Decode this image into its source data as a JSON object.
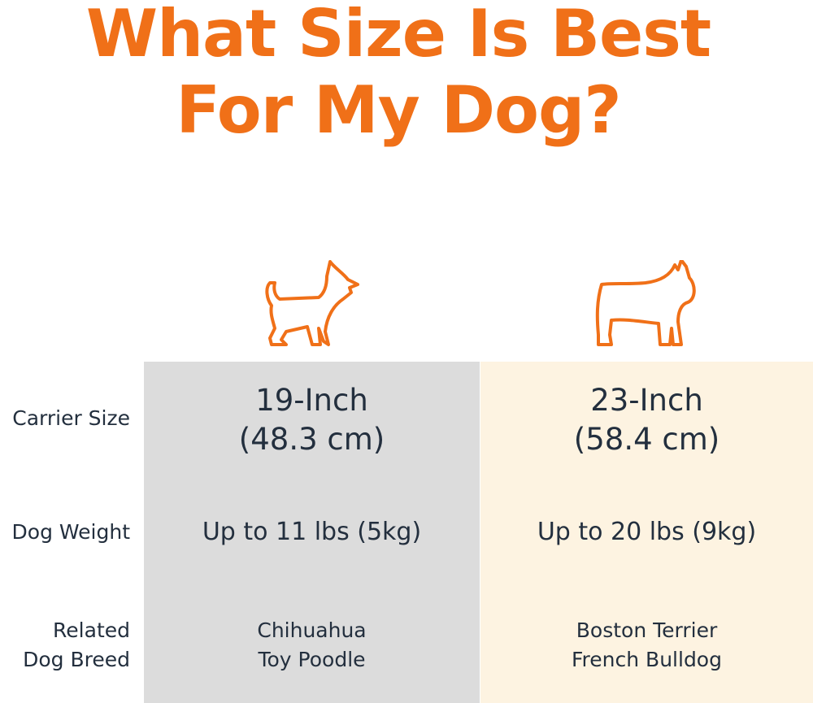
{
  "title": {
    "line1": "What Size Is Best",
    "line2": "For My Dog?"
  },
  "colors": {
    "accent": "#f07018",
    "small_column": "#dcdcdc",
    "large_column": "#fdf3e1",
    "text": "#232f3e"
  },
  "row_labels": {
    "carrier_size": "Carrier Size",
    "dog_weight": "Dog Weight",
    "breed_line1": "Related",
    "breed_line2": "Dog Breed"
  },
  "columns": [
    {
      "icon": "chihuahua-icon",
      "size_line1": "19-Inch",
      "size_line2": "(48.3 cm)",
      "weight": "Up to 11 lbs (5kg)",
      "breeds": [
        "Chihuahua",
        "Toy Poodle"
      ]
    },
    {
      "icon": "french-bulldog-icon",
      "size_line1": "23-Inch",
      "size_line2": "(58.4 cm)",
      "weight": "Up to 20 lbs (9kg)",
      "breeds": [
        "Boston Terrier",
        "French Bulldog"
      ]
    }
  ]
}
